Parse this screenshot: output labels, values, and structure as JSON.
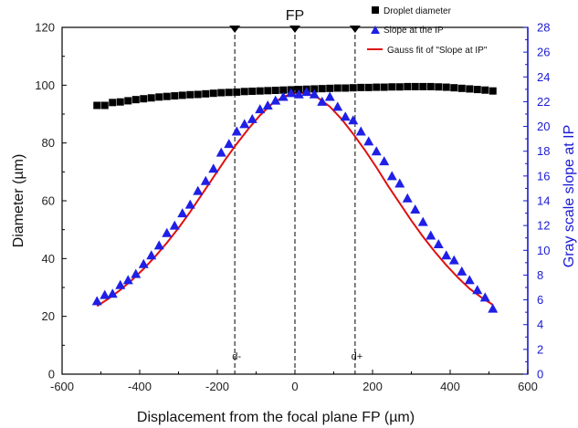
{
  "chart_data": {
    "type": "scatter",
    "title": "FP",
    "xlabel": "Displacement from the focal plane FP (µm)",
    "ylabel": "Diameter (µm)",
    "ylabel_right": "Gray scale slope at IP",
    "xlim": [
      -600,
      600
    ],
    "ylim": [
      0,
      120
    ],
    "ylim_right": [
      0,
      28
    ],
    "x_ticks": [
      -600,
      -400,
      -200,
      0,
      200,
      400,
      600
    ],
    "y_ticks": [
      0,
      20,
      40,
      60,
      80,
      100,
      120
    ],
    "y_right_ticks": [
      0,
      2,
      4,
      6,
      8,
      10,
      12,
      14,
      16,
      18,
      20,
      22,
      24,
      26,
      28
    ],
    "grid": false,
    "legend_position": "top-right",
    "colors": {
      "diameter": "#000000",
      "slope": "#1f1fe6",
      "fit": "#e01010",
      "right_axis": "#1a1ad6"
    },
    "vlines": [
      {
        "x": -155,
        "label": "d-"
      },
      {
        "x": 0,
        "label": "FP"
      },
      {
        "x": 155,
        "label": "d+"
      }
    ],
    "series": [
      {
        "name": "Droplet diameter",
        "axis": "left",
        "marker": "square",
        "x": [
          -510,
          -490,
          -470,
          -450,
          -430,
          -410,
          -390,
          -370,
          -350,
          -330,
          -310,
          -290,
          -270,
          -250,
          -230,
          -210,
          -190,
          -170,
          -150,
          -130,
          -110,
          -90,
          -70,
          -50,
          -30,
          -10,
          10,
          30,
          50,
          70,
          90,
          110,
          130,
          150,
          170,
          190,
          210,
          230,
          250,
          270,
          290,
          310,
          330,
          350,
          370,
          390,
          410,
          430,
          450,
          470,
          490,
          510
        ],
        "values": [
          93.0,
          93.0,
          94.0,
          94.2,
          94.6,
          95.0,
          95.3,
          95.6,
          95.9,
          96.1,
          96.3,
          96.5,
          96.7,
          96.8,
          97.0,
          97.2,
          97.4,
          97.5,
          97.6,
          97.8,
          97.9,
          98.0,
          98.1,
          98.2,
          98.3,
          98.4,
          98.5,
          98.6,
          98.7,
          98.8,
          98.9,
          99.0,
          99.0,
          99.1,
          99.2,
          99.2,
          99.3,
          99.3,
          99.4,
          99.4,
          99.5,
          99.5,
          99.5,
          99.5,
          99.4,
          99.3,
          99.1,
          98.9,
          98.7,
          98.5,
          98.3,
          98.0
        ]
      },
      {
        "name": "Slope at the IP",
        "axis": "right",
        "marker": "triangle",
        "x": [
          -510,
          -490,
          -470,
          -450,
          -430,
          -410,
          -390,
          -370,
          -350,
          -330,
          -310,
          -290,
          -270,
          -250,
          -230,
          -210,
          -190,
          -170,
          -150,
          -130,
          -110,
          -90,
          -70,
          -50,
          -30,
          -10,
          10,
          30,
          50,
          70,
          90,
          110,
          130,
          150,
          170,
          190,
          210,
          230,
          250,
          270,
          290,
          310,
          330,
          350,
          370,
          390,
          410,
          430,
          450,
          470,
          490,
          510
        ],
        "values": [
          5.9,
          6.4,
          6.5,
          7.2,
          7.6,
          8.1,
          8.9,
          9.6,
          10.4,
          11.4,
          12.0,
          13.0,
          13.7,
          14.8,
          15.6,
          16.6,
          17.9,
          18.6,
          19.6,
          20.2,
          20.6,
          21.4,
          21.7,
          22.1,
          22.4,
          22.7,
          22.6,
          22.8,
          22.6,
          22.0,
          22.4,
          21.6,
          20.8,
          20.5,
          19.6,
          18.8,
          18.0,
          17.2,
          16.0,
          15.4,
          14.2,
          13.3,
          12.3,
          11.2,
          10.5,
          9.6,
          9.2,
          8.3,
          7.6,
          6.8,
          6.2,
          5.3
        ]
      },
      {
        "name": "Gauss fit of \"Slope at IP\"",
        "axis": "right",
        "marker": "line",
        "x": [
          -510,
          -480,
          -450,
          -420,
          -390,
          -360,
          -330,
          -300,
          -270,
          -240,
          -210,
          -180,
          -150,
          -120,
          -90,
          -60,
          -30,
          0,
          30,
          60,
          90,
          120,
          150,
          180,
          210,
          240,
          270,
          300,
          330,
          360,
          390,
          420,
          450,
          480,
          510
        ],
        "values": [
          5.5,
          6.1,
          6.8,
          7.6,
          8.5,
          9.5,
          10.6,
          11.8,
          13.1,
          14.5,
          15.9,
          17.3,
          18.6,
          19.8,
          20.9,
          21.8,
          22.4,
          22.7,
          22.7,
          22.3,
          21.6,
          20.6,
          19.4,
          18.1,
          16.7,
          15.2,
          13.8,
          12.4,
          11.1,
          9.9,
          8.8,
          7.8,
          6.9,
          6.2,
          5.6
        ]
      }
    ]
  }
}
